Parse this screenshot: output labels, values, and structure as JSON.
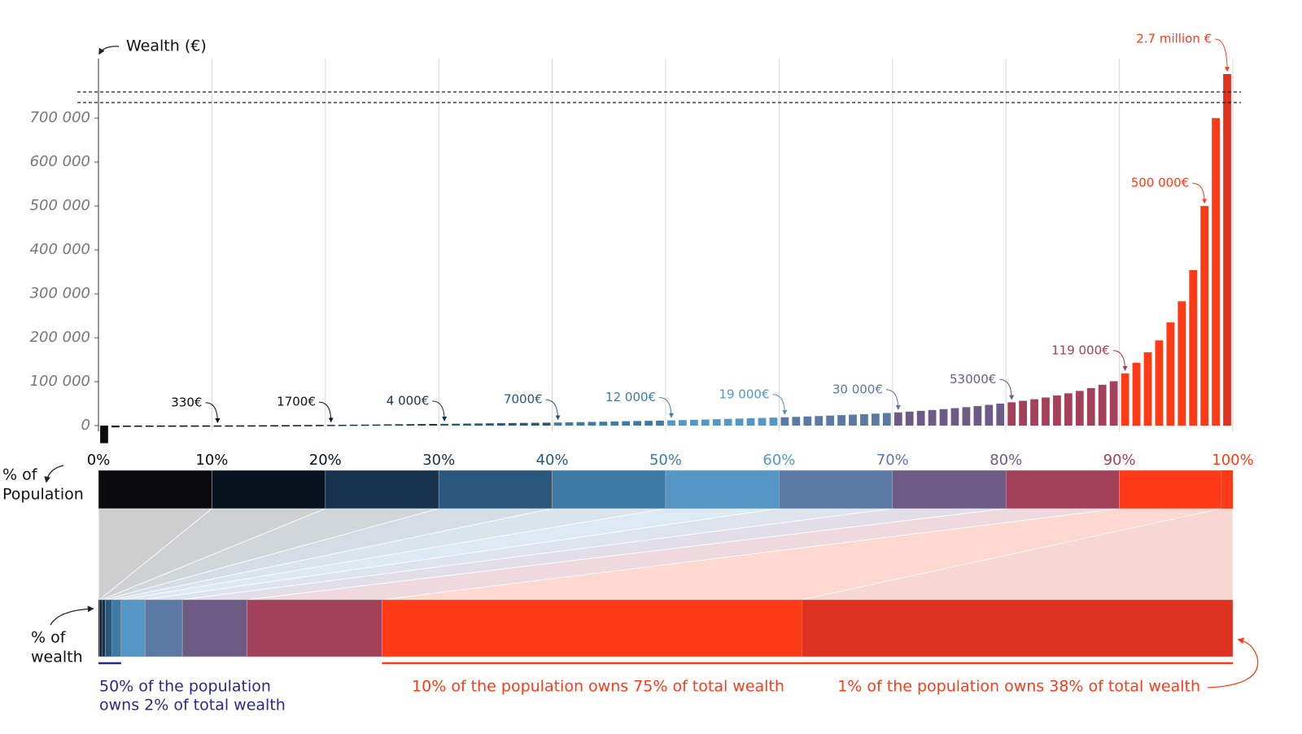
{
  "chart_data": {
    "type": "bar",
    "ylabel": "Wealth (€)",
    "ylim": [
      -50000,
      830000
    ],
    "yticks": [
      0,
      {
        "value": 100000,
        "label": "100 000"
      },
      {
        "value": 200000,
        "label": "200 000"
      },
      {
        "value": 300000,
        "label": "300 000"
      },
      {
        "value": 400000,
        "label": "400 000"
      },
      {
        "value": 500000,
        "label": "500 000"
      },
      {
        "value": 600000,
        "label": "600 000"
      },
      {
        "value": 700000,
        "label": "700 000"
      }
    ],
    "xlim": [
      0,
      100
    ],
    "xticks": [
      {
        "value": 0,
        "label": "0%"
      },
      {
        "value": 10,
        "label": "10%"
      },
      {
        "value": 20,
        "label": "20%"
      },
      {
        "value": 30,
        "label": "30%"
      },
      {
        "value": 40,
        "label": "40%"
      },
      {
        "value": 50,
        "label": "50%"
      },
      {
        "value": 60,
        "label": "60%"
      },
      {
        "value": 70,
        "label": "70%"
      },
      {
        "value": 80,
        "label": "80%"
      },
      {
        "value": 90,
        "label": "90%"
      },
      {
        "value": 100,
        "label": "100%"
      }
    ],
    "grid": true,
    "values": [
      -40000,
      -4000,
      -1000,
      50,
      100,
      150,
      200,
      250,
      280,
      310,
      330,
      400,
      500,
      600,
      750,
      900,
      1050,
      1200,
      1350,
      1500,
      1700,
      1900,
      2100,
      2300,
      2500,
      2800,
      3000,
      3300,
      3500,
      3800,
      4000,
      4300,
      4600,
      4900,
      5200,
      5500,
      5800,
      6100,
      6400,
      6700,
      7000,
      7400,
      7900,
      8400,
      8900,
      9400,
      9900,
      10400,
      10900,
      11400,
      12000,
      12600,
      13200,
      13900,
      14600,
      15300,
      16000,
      16700,
      17400,
      18200,
      19000,
      19900,
      20800,
      21800,
      22800,
      23800,
      24900,
      26000,
      27200,
      28600,
      30000,
      31800,
      33600,
      35500,
      37500,
      39700,
      42000,
      44500,
      47200,
      50000,
      53000,
      56500,
      60000,
      64000,
      68500,
      73500,
      79000,
      85500,
      93000,
      101000,
      119000,
      143000,
      167000,
      194000,
      235000,
      283000,
      354000,
      500000,
      700000,
      2700000
    ],
    "value_labels": [
      null,
      null,
      null,
      null,
      null,
      null,
      null,
      null,
      null,
      null,
      "330€",
      null,
      null,
      null,
      null,
      null,
      null,
      null,
      null,
      null,
      "1700€",
      null,
      null,
      null,
      null,
      null,
      null,
      null,
      null,
      null,
      "4 000€",
      null,
      null,
      null,
      null,
      null,
      null,
      null,
      null,
      null,
      "7000€",
      null,
      null,
      null,
      null,
      null,
      null,
      null,
      null,
      null,
      "12 000€",
      null,
      null,
      null,
      null,
      null,
      null,
      null,
      null,
      null,
      "19 000€",
      null,
      null,
      null,
      null,
      null,
      null,
      null,
      null,
      null,
      "30 000€",
      null,
      null,
      null,
      null,
      null,
      null,
      null,
      null,
      null,
      "53000€",
      null,
      null,
      null,
      null,
      null,
      null,
      null,
      null,
      null,
      "119 000€",
      null,
      null,
      null,
      null,
      null,
      null,
      "500 000€",
      null,
      "2.7 million €"
    ],
    "population_bar": {
      "label": [
        "% of",
        "Population"
      ],
      "shares": [
        10,
        10,
        10,
        10,
        10,
        10,
        10,
        10,
        10,
        9,
        1
      ],
      "colors": [
        "#0b0b0e",
        "#08131f",
        "#17324c",
        "#2a577c",
        "#3f7aa4",
        "#5596c4",
        "#5b79a4",
        "#6d5a85",
        "#a3405a",
        "#ff3a17",
        "#ff3a17"
      ]
    },
    "wealth_bar": {
      "label": [
        "% of",
        "wealth"
      ],
      "shares": [
        0.1,
        0.2,
        0.3,
        0.6,
        0.8,
        2.1,
        3.3,
        5.7,
        11.9,
        37,
        38
      ],
      "colors": [
        "#0b0b0e",
        "#08131f",
        "#17324c",
        "#2a577c",
        "#3f7aa4",
        "#5596c4",
        "#5b79a4",
        "#6d5a85",
        "#a3405a",
        "#ff3a17",
        "#dd3220"
      ]
    },
    "notes": [
      {
        "lines": [
          "50% of the population",
          "owns 2% of total wealth"
        ],
        "color": "#2a2a86"
      },
      {
        "lines": [
          "10% of the population owns 75% of total wealth"
        ],
        "color": "#ff3a17"
      },
      {
        "lines": [
          "1% of the population owns 38% of total wealth"
        ],
        "color": "#ff3a17"
      }
    ]
  }
}
